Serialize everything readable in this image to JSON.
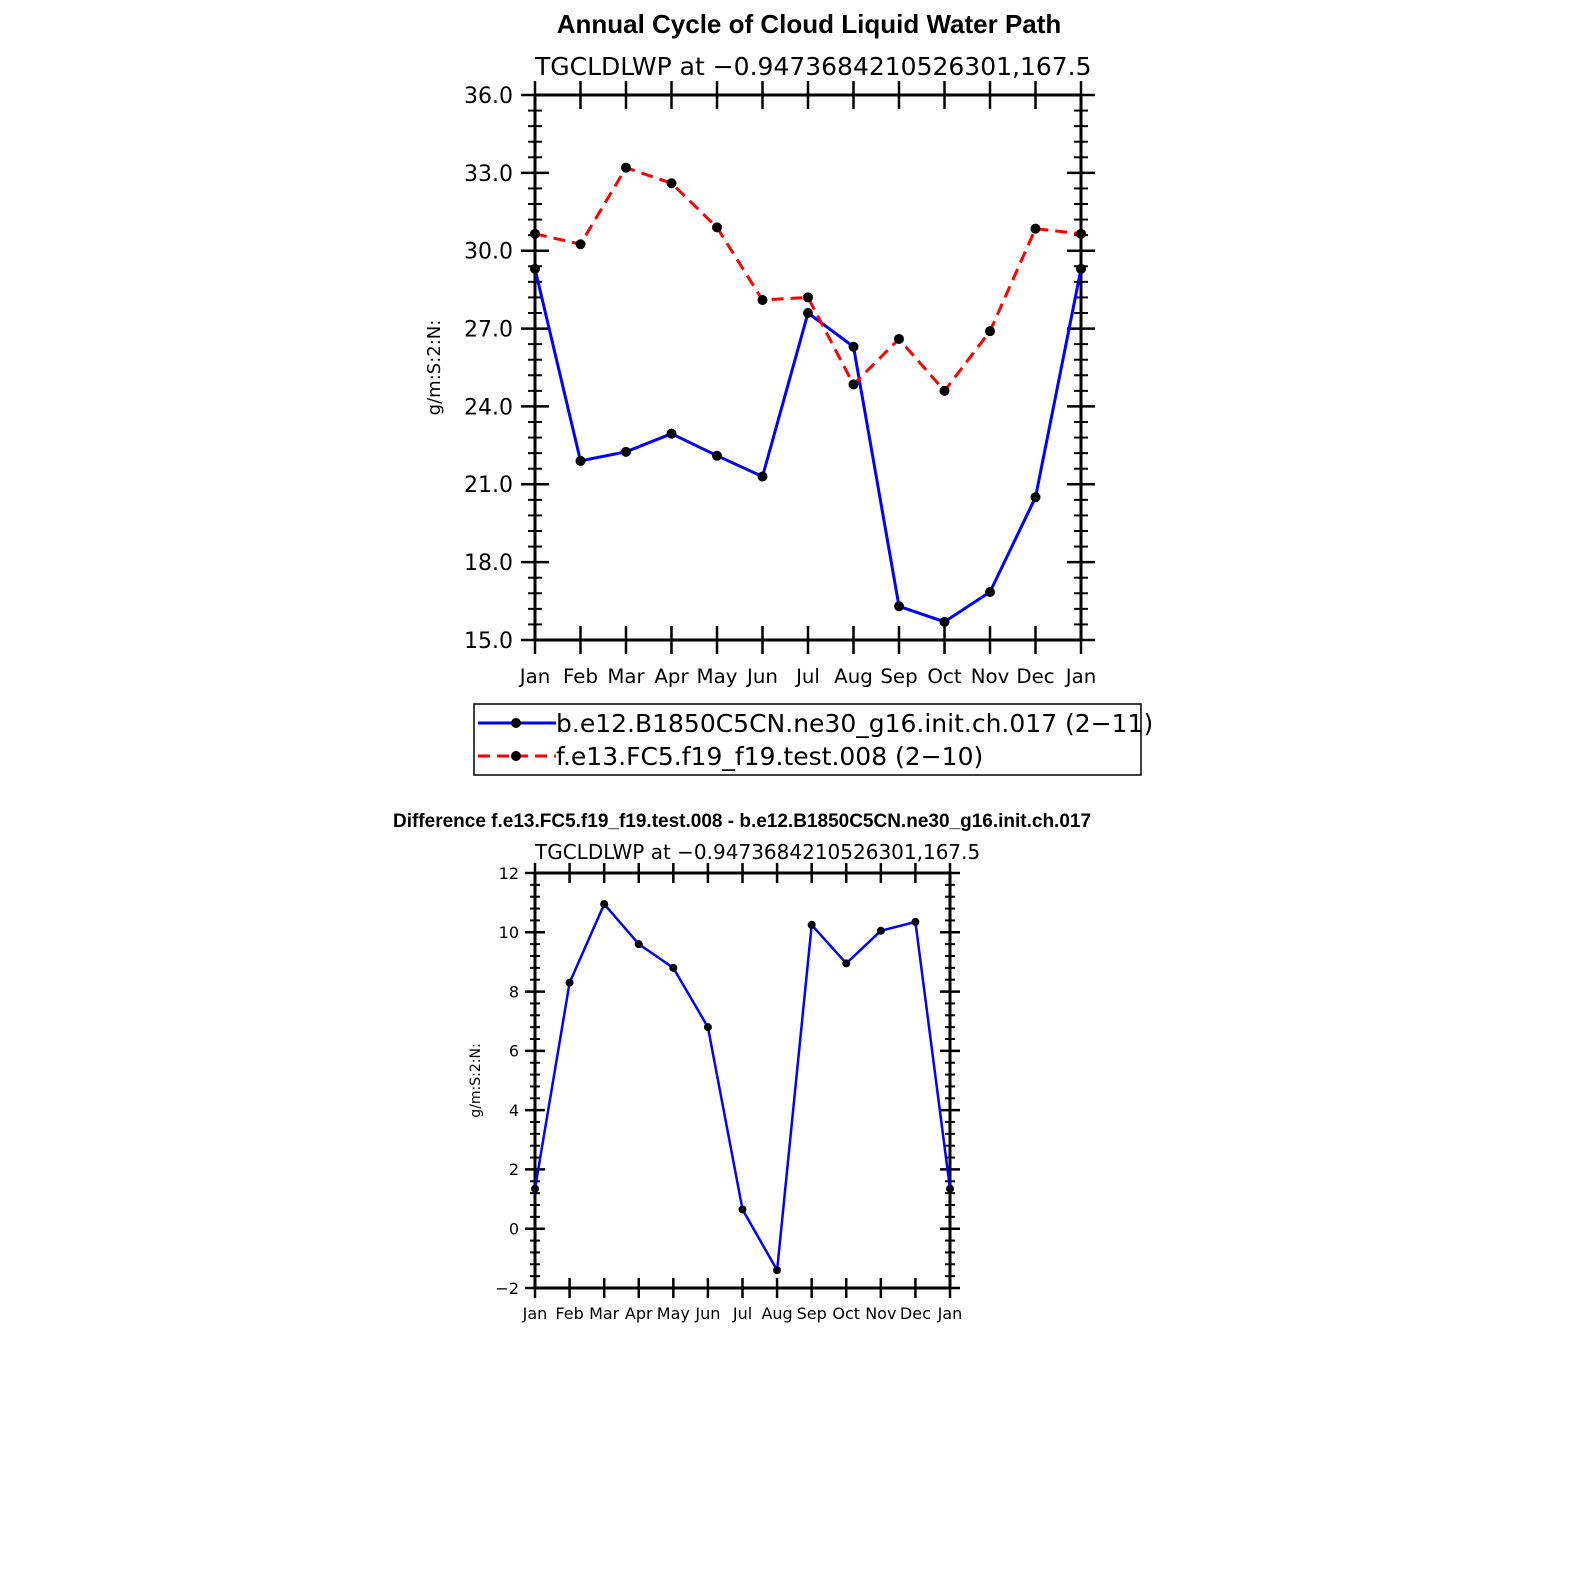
{
  "figure_title": "Annual Cycle of Cloud Liquid Water Path",
  "chart_data": [
    {
      "type": "line",
      "title": "Annual Cycle of Cloud Liquid Water Path",
      "subtitle": "TGCLDLWP at −0.9473684210526301,167.5",
      "xlabel": "",
      "ylabel": "g/m:S:2:N:",
      "categories": [
        "Jan",
        "Feb",
        "Mar",
        "Apr",
        "May",
        "Jun",
        "Jul",
        "Aug",
        "Sep",
        "Oct",
        "Nov",
        "Dec",
        "Jan"
      ],
      "ylim": [
        15,
        36
      ],
      "yticks": [
        15,
        18,
        21,
        24,
        27,
        30,
        33,
        36
      ],
      "ytick_labels": [
        "15.0",
        "18.0",
        "21.0",
        "24.0",
        "27.0",
        "30.0",
        "33.0",
        "36.0"
      ],
      "grid": false,
      "series": [
        {
          "name": "b.e12.B1850C5CN.ne30_g16.init.ch.017 (2−11)",
          "color": "#0000ff",
          "dash": "solid",
          "values": [
            29.3,
            21.9,
            22.25,
            22.95,
            22.1,
            21.3,
            27.6,
            26.3,
            16.3,
            15.7,
            16.85,
            20.5,
            29.3
          ]
        },
        {
          "name": "f.e13.FC5.f19_f19.test.008 (2−10)",
          "color": "#ff0000",
          "dash": "dashed",
          "values": [
            30.65,
            30.25,
            33.2,
            32.6,
            30.9,
            28.1,
            28.2,
            24.85,
            26.6,
            24.6,
            26.9,
            30.85,
            30.65
          ]
        }
      ],
      "legend": "bottom"
    },
    {
      "type": "line",
      "title": "Difference f.e13.FC5.f19_f19.test.008 - b.e12.B1850C5CN.ne30_g16.init.ch.017",
      "subtitle": "TGCLDLWP at −0.9473684210526301,167.5",
      "xlabel": "",
      "ylabel": "g/m:S:2:N:",
      "categories": [
        "Jan",
        "Feb",
        "Mar",
        "Apr",
        "May",
        "Jun",
        "Jul",
        "Aug",
        "Sep",
        "Oct",
        "Nov",
        "Dec",
        "Jan"
      ],
      "ylim": [
        -2,
        12
      ],
      "yticks": [
        -2,
        0,
        2,
        4,
        6,
        8,
        10,
        12
      ],
      "ytick_labels": [
        "−2",
        "0",
        "2",
        "4",
        "6",
        "8",
        "10",
        "12"
      ],
      "grid": false,
      "series": [
        {
          "name": "Difference",
          "color": "#0000ff",
          "dash": "solid",
          "values": [
            1.35,
            8.3,
            10.95,
            9.6,
            8.8,
            6.8,
            0.65,
            -1.4,
            10.25,
            8.95,
            10.05,
            10.35,
            1.35
          ]
        }
      ]
    }
  ]
}
